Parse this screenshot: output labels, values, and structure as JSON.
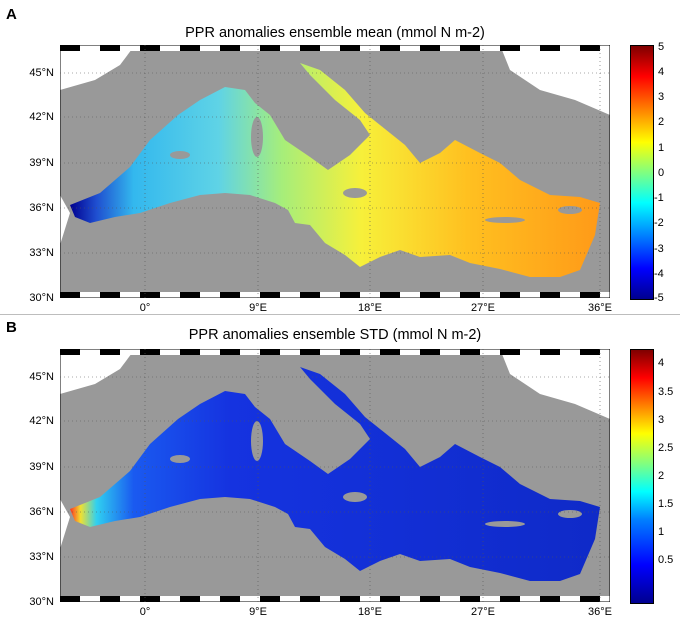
{
  "panels": [
    {
      "letter": "A",
      "title": "PPR anomalies ensemble mean (mmol N m-2)",
      "y_ticks": [
        "45°N",
        "42°N",
        "39°N",
        "36°N",
        "33°N",
        "30°N"
      ],
      "x_ticks": [
        "0°",
        "9°E",
        "18°E",
        "27°E",
        "36°E"
      ],
      "colorbar_ticks": [
        "5",
        "4",
        "3",
        "2",
        "1",
        "0",
        "-1",
        "-2",
        "-3",
        "-4",
        "-5"
      ],
      "colorbar_range": [
        -5,
        5
      ],
      "colormap": "jet",
      "sea_color_hint": "yellow-orange in east, cyan-blue in west, dark blue near Gibraltar"
    },
    {
      "letter": "B",
      "title": "PPR anomalies ensemble STD (mmol N m-2)",
      "y_ticks": [
        "45°N",
        "42°N",
        "39°N",
        "36°N",
        "33°N",
        "30°N"
      ],
      "x_ticks": [
        "0°",
        "9°E",
        "18°E",
        "27°E",
        "36°E"
      ],
      "colorbar_ticks": [
        "4",
        "3.5",
        "3",
        "2.5",
        "2",
        "1.5",
        "1",
        "0.5"
      ],
      "colorbar_range": [
        0,
        4.5
      ],
      "colormap": "jet",
      "sea_color_hint": "mostly blue, high values (red) at Alboran Sea / Gibraltar"
    }
  ],
  "colors": {
    "land": "#ffffff",
    "background_sea": "#999999",
    "frame": "#000000"
  }
}
